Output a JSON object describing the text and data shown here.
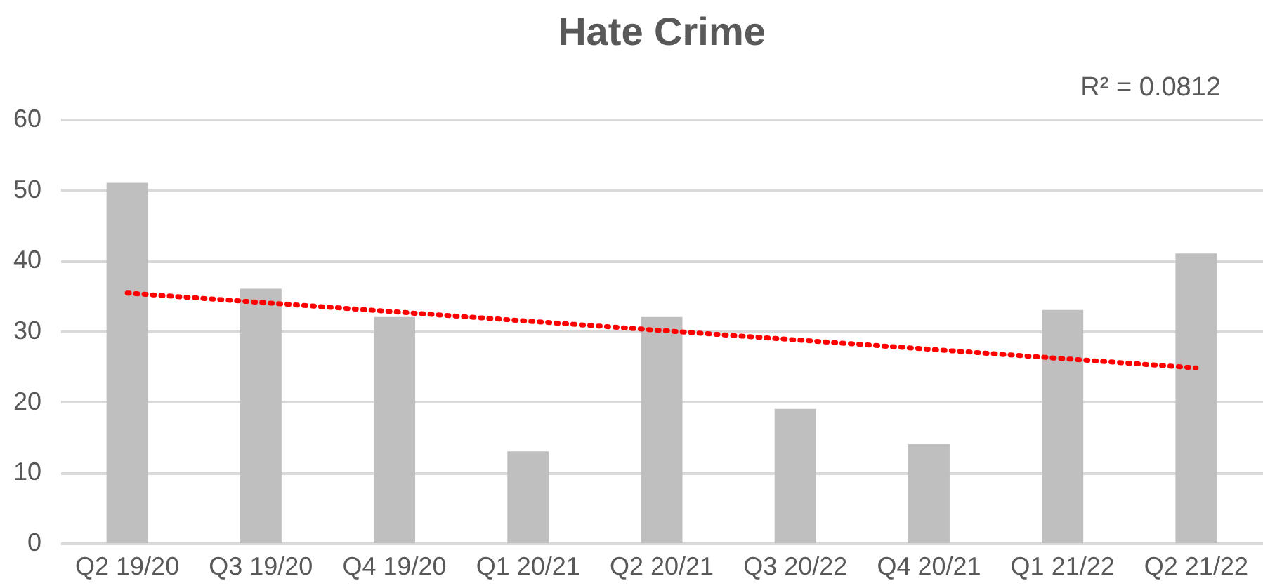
{
  "chart_data": {
    "type": "bar",
    "title": "Hate Crime",
    "categories": [
      "Q2 19/20",
      "Q3 19/20",
      "Q4 19/20",
      "Q1 20/21",
      "Q2 20/21",
      "Q3 20/22",
      "Q4 20/21",
      "Q1 21/22",
      "Q2 21/22"
    ],
    "series": [
      {
        "color": "#bfbfbf",
        "values": [
          51,
          36,
          32,
          13,
          32,
          19,
          14,
          33,
          41
        ]
      },
      {
        "type": "line",
        "color": "#ff0000",
        "line_style": "dotted",
        "x": [
          "Q2 19/20",
          "Q2 21/22"
        ],
        "values": [
          35.4,
          24.8
        ]
      }
    ],
    "ylim": [
      0,
      60
    ],
    "yticks": [
      0,
      10,
      20,
      30,
      40,
      50,
      60
    ],
    "grid": "y",
    "annotations": [
      "R² = 0.0812"
    ]
  }
}
